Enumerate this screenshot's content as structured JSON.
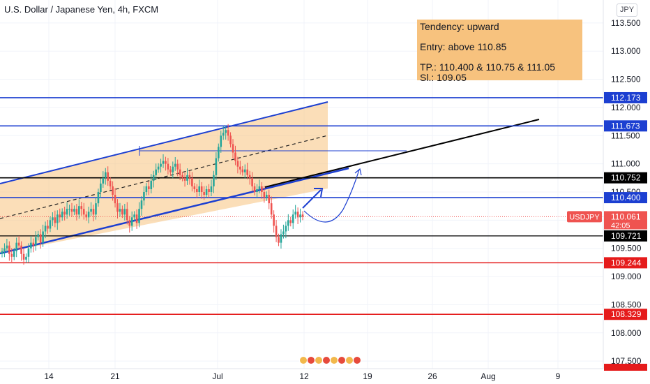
{
  "header": {
    "title": "U.S. Dollar / Japanese Yen, 4h, FXCM",
    "currency_button": "JPY"
  },
  "notes": {
    "line1": "Tendency: upward",
    "line2": "Entry: above 110.85",
    "line3": "TP.: 110.400 & 110.75 & 111.05",
    "line4": "Sl.: 109.05"
  },
  "colors": {
    "blue": "#1c3fd1",
    "black": "#000000",
    "red": "#e51b1b",
    "up": "#26a69a",
    "down": "#ef5350",
    "channel_fill": "#f7c27e"
  },
  "chart_data": {
    "type": "candlestick",
    "symbol": "USDJPY",
    "ylim": [
      107.0,
      114.0
    ],
    "y_ticks": [
      "113.500",
      "113.000",
      "112.500",
      "112.000",
      "111.500",
      "111.000",
      "110.500",
      "110.000",
      "109.500",
      "109.000",
      "108.500",
      "108.000",
      "107.500"
    ],
    "x_ticks": [
      "14",
      "21",
      "Jul",
      "12",
      "19",
      "26",
      "Aug",
      "9"
    ],
    "levels": [
      {
        "value": 112.173,
        "label": "112.173",
        "color": "#1c3fd1"
      },
      {
        "value": 111.673,
        "label": "111.673",
        "color": "#1c3fd1"
      },
      {
        "value": 110.752,
        "label": "110.752",
        "color": "#000000"
      },
      {
        "value": 110.4,
        "label": "110.400",
        "color": "#1c3fd1"
      },
      {
        "value": 109.721,
        "label": "109.721",
        "color": "#000000"
      },
      {
        "value": 109.244,
        "label": "109.244",
        "color": "#e51b1b"
      },
      {
        "value": 108.329,
        "label": "108.329",
        "color": "#e51b1b"
      }
    ],
    "current_price": {
      "value": 110.061,
      "label": "110.061",
      "symbol_label": "USDJPY",
      "countdown": "42:05"
    },
    "closes": [
      109.45,
      109.5,
      109.55,
      109.4,
      109.35,
      109.45,
      109.6,
      109.55,
      109.4,
      109.3,
      109.35,
      109.5,
      109.6,
      109.55,
      109.7,
      109.75,
      109.6,
      109.8,
      109.9,
      109.85,
      110.0,
      110.05,
      109.95,
      110.1,
      110.05,
      110.15,
      110.1,
      110.2,
      110.2,
      110.15,
      110.2,
      110.1,
      110.25,
      110.2,
      110.1,
      110.05,
      110.15,
      110.2,
      110.1,
      110.3,
      110.5,
      110.65,
      110.75,
      110.85,
      110.7,
      110.6,
      110.45,
      110.3,
      110.15,
      110.2,
      110.1,
      110.2,
      110.0,
      109.9,
      110.05,
      110.1,
      109.95,
      110.2,
      110.35,
      110.5,
      110.6,
      110.55,
      110.7,
      110.8,
      110.9,
      110.95,
      111.0,
      111.05,
      111.0,
      110.9,
      110.85,
      110.95,
      111.0,
      110.9,
      110.8,
      110.75,
      110.7,
      110.8,
      110.75,
      110.6,
      110.55,
      110.5,
      110.6,
      110.5,
      110.45,
      110.55,
      110.5,
      110.6,
      110.8,
      111.1,
      111.3,
      111.5,
      111.55,
      111.6,
      111.5,
      111.35,
      111.2,
      111.05,
      110.95,
      110.9,
      110.85,
      110.9,
      110.8,
      110.75,
      110.6,
      110.5,
      110.55,
      110.6,
      110.5,
      110.4,
      110.45,
      110.3,
      110.1,
      109.9,
      109.7,
      109.6,
      109.75,
      109.8,
      109.9,
      110.0,
      109.95,
      110.1,
      110.15,
      110.05,
      110.1,
      110.06
    ]
  }
}
